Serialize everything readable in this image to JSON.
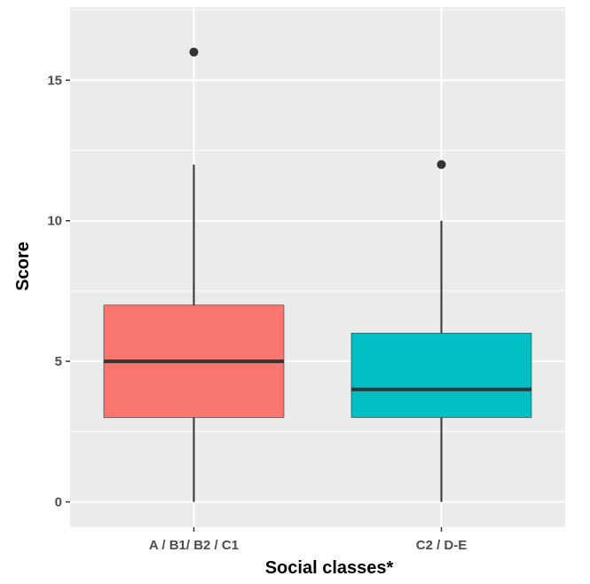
{
  "chart_data": {
    "type": "boxplot",
    "title": "",
    "xlabel": "Social classes*",
    "ylabel": "Score",
    "ylim": [
      -0.9,
      17.6
    ],
    "yticks": [
      0,
      5,
      10,
      15
    ],
    "grid": true,
    "legend": "none",
    "panel_background": "#ebebeb",
    "grid_color": "#ffffff",
    "categories": [
      "A / B1/ B2 / C1",
      "C2 / D-E"
    ],
    "boxes": [
      {
        "category": "A / B1/ B2 / C1",
        "whisker_low": 0,
        "q1": 3,
        "median": 5,
        "q3": 7,
        "whisker_high": 12,
        "outliers": [
          16
        ],
        "fill": "#f8766d"
      },
      {
        "category": "C2 / D-E",
        "whisker_low": 0,
        "q1": 3,
        "median": 4,
        "q3": 6,
        "whisker_high": 10,
        "outliers": [
          12
        ],
        "fill": "#00bfc4"
      }
    ]
  }
}
